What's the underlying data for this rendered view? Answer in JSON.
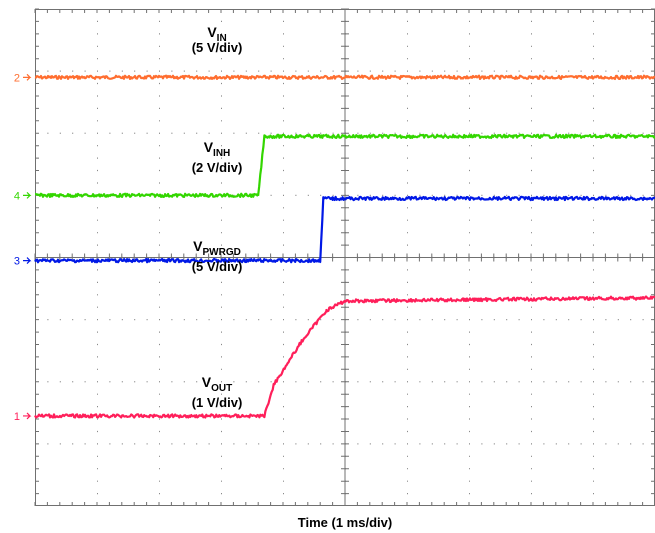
{
  "chart_data": {
    "type": "line",
    "xlabel": "Time (1 ms/div)",
    "x_divisions": 10,
    "y_divisions": 8,
    "xlim": [
      0,
      10
    ],
    "grid": true,
    "series": [
      {
        "id": "vin",
        "color": "#ff6e30",
        "marker": "2",
        "name_main": "V",
        "name_sub": "IN",
        "scale": "(5 V/div)",
        "points": [
          [
            0,
            6.9
          ],
          [
            10,
            6.9
          ]
        ]
      },
      {
        "id": "vinh",
        "color": "#33d600",
        "marker": "4",
        "name_main": "V",
        "name_sub": "INH",
        "scale": "(2 V/div)",
        "points": [
          [
            0,
            5.0
          ],
          [
            3.6,
            5.0
          ],
          [
            3.7,
            5.95
          ],
          [
            10,
            5.95
          ]
        ]
      },
      {
        "id": "vpwrgd",
        "color": "#0018e6",
        "marker": "3",
        "name_main": "V",
        "name_sub": "PWRGD",
        "scale": "(5 V/div)",
        "points": [
          [
            0,
            3.95
          ],
          [
            4.6,
            3.95
          ],
          [
            4.65,
            4.95
          ],
          [
            4.8,
            4.95
          ],
          [
            10,
            4.95
          ]
        ]
      },
      {
        "id": "vout",
        "color": "#ff1f5a",
        "marker": "1",
        "name_main": "V",
        "name_sub": "OUT",
        "scale": "(1 V/div)",
        "points": [
          [
            0,
            1.45
          ],
          [
            3.7,
            1.45
          ],
          [
            3.85,
            1.95
          ],
          [
            4.3,
            2.65
          ],
          [
            4.7,
            3.15
          ],
          [
            5.0,
            3.3
          ],
          [
            10,
            3.35
          ]
        ]
      }
    ]
  }
}
